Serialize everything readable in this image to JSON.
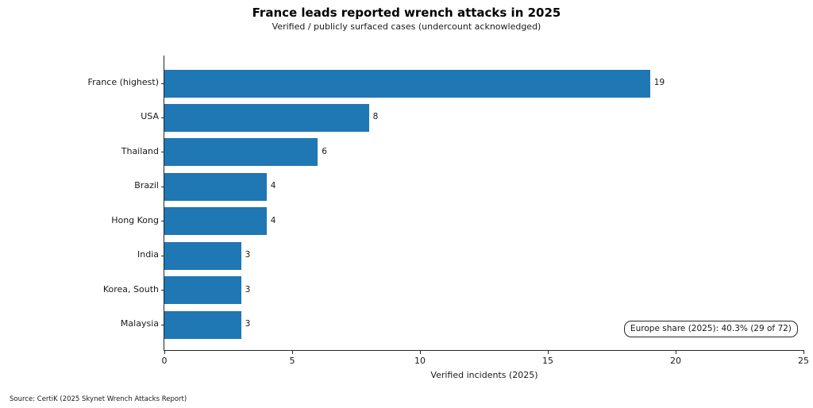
{
  "figure": {
    "title": "France leads reported wrench attacks in 2025",
    "subtitle": "Verified / publicly surfaced cases (undercount acknowledged)",
    "x_axis_label": "Verified incidents (2025)",
    "annotation": "Europe share (2025): 40.3% (29 of 72)",
    "source_note": "Source: CertiK (2025 Skynet Wrench Attacks Report)"
  },
  "chart_data": {
    "type": "bar",
    "orientation": "horizontal",
    "title": "France leads reported wrench attacks in 2025",
    "subtitle": "Verified / publicly surfaced cases (undercount acknowledged)",
    "xlabel": "Verified incidents (2025)",
    "ylabel": "",
    "categories": [
      "France (highest)",
      "USA",
      "Thailand",
      "Brazil",
      "Hong Kong",
      "India",
      "Korea, South",
      "Malaysia"
    ],
    "values": [
      19,
      8,
      6,
      4,
      4,
      3,
      3,
      3
    ],
    "value_labels": [
      "19",
      "8",
      "6",
      "4",
      "4",
      "3",
      "3",
      "3"
    ],
    "xlim": [
      0,
      25
    ],
    "x_ticks": [
      0,
      5,
      10,
      15,
      20,
      25
    ],
    "grid": false,
    "legend": null,
    "bar_color": "#1f77b4",
    "annotation": "Europe share (2025): 40.3% (29 of 72)",
    "annotation_position": "bottom-right"
  }
}
